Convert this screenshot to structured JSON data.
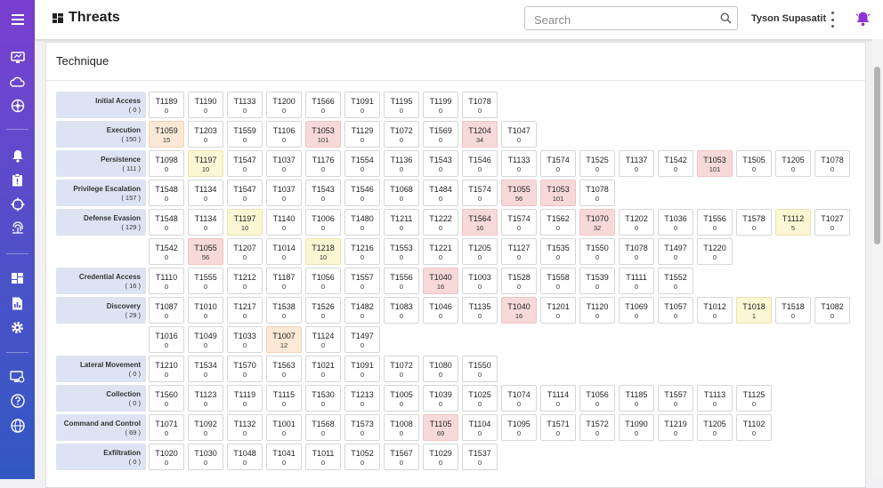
{
  "app": {
    "page_title": "Threats",
    "search_placeholder": "Search",
    "user_name": "Tyson Supasatit"
  },
  "sidebar": {
    "icons": [
      "menu-icon",
      "monitor-icon",
      "cloud-icon",
      "network-icon",
      "bell-icon",
      "clipboard-icon",
      "target-icon",
      "fingerprint-icon",
      "dashboard-icon",
      "report-icon",
      "settings-icon",
      "desktop-settings-icon",
      "help-icon",
      "globe-icon"
    ]
  },
  "colors": {
    "sidebar_top": "#7a3fd0",
    "sidebar_bottom": "#3258c4",
    "tactic_bg": "#dde3f2",
    "heat_pink": "#f7d9d9",
    "heat_orange": "#fbe8d6",
    "heat_yellow": "#fbf6d3",
    "bell_accent": "#8e35d6"
  },
  "card": {
    "title": "Technique"
  },
  "matrix": [
    {
      "tactic": "Initial Access",
      "count": "( 0 )",
      "rows": [
        [
          [
            "T1189",
            "0"
          ],
          [
            "T1190",
            "0"
          ],
          [
            "T1133",
            "0"
          ],
          [
            "T1200",
            "0"
          ],
          [
            "T1566",
            "0"
          ],
          [
            "T1091",
            "0"
          ],
          [
            "T1195",
            "0"
          ],
          [
            "T1199",
            "0"
          ],
          [
            "T1078",
            "0"
          ]
        ]
      ]
    },
    {
      "tactic": "Execution",
      "count": "( 150 )",
      "rows": [
        [
          [
            "T1059",
            "15",
            "orange"
          ],
          [
            "T1203",
            "0"
          ],
          [
            "T1559",
            "0"
          ],
          [
            "T1106",
            "0"
          ],
          [
            "T1053",
            "101",
            "pink"
          ],
          [
            "T1129",
            "0"
          ],
          [
            "T1072",
            "0"
          ],
          [
            "T1569",
            "0"
          ],
          [
            "T1204",
            "34",
            "pink"
          ],
          [
            "T1047",
            "0"
          ]
        ]
      ]
    },
    {
      "tactic": "Persistence",
      "count": "( 111 )",
      "rows": [
        [
          [
            "T1098",
            "0"
          ],
          [
            "T1197",
            "10",
            "yellow"
          ],
          [
            "T1547",
            "0"
          ],
          [
            "T1037",
            "0"
          ],
          [
            "T1176",
            "0"
          ],
          [
            "T1554",
            "0"
          ],
          [
            "T1136",
            "0"
          ],
          [
            "T1543",
            "0"
          ],
          [
            "T1546",
            "0"
          ],
          [
            "T1133",
            "0"
          ],
          [
            "T1574",
            "0"
          ],
          [
            "T1525",
            "0"
          ],
          [
            "T1137",
            "0"
          ],
          [
            "T1542",
            "0"
          ],
          [
            "T1053",
            "101",
            "pink"
          ],
          [
            "T1505",
            "0"
          ],
          [
            "T1205",
            "0"
          ],
          [
            "T1078",
            "0"
          ]
        ]
      ]
    },
    {
      "tactic": "Privilege Escalation",
      "count": "( 157 )",
      "rows": [
        [
          [
            "T1548",
            "0"
          ],
          [
            "T1134",
            "0"
          ],
          [
            "T1547",
            "0"
          ],
          [
            "T1037",
            "0"
          ],
          [
            "T1543",
            "0"
          ],
          [
            "T1546",
            "0"
          ],
          [
            "T1068",
            "0"
          ],
          [
            "T1484",
            "0"
          ],
          [
            "T1574",
            "0"
          ],
          [
            "T1055",
            "56",
            "pink"
          ],
          [
            "T1053",
            "101",
            "pink"
          ],
          [
            "T1078",
            "0"
          ]
        ]
      ]
    },
    {
      "tactic": "Defense Evasion",
      "count": "( 129 )",
      "rows": [
        [
          [
            "T1548",
            "0"
          ],
          [
            "T1134",
            "0"
          ],
          [
            "T1197",
            "10",
            "yellow"
          ],
          [
            "T1140",
            "0"
          ],
          [
            "T1006",
            "0"
          ],
          [
            "T1480",
            "0"
          ],
          [
            "T1211",
            "0"
          ],
          [
            "T1222",
            "0"
          ],
          [
            "T1564",
            "16",
            "pink"
          ],
          [
            "T1574",
            "0"
          ],
          [
            "T1562",
            "0"
          ],
          [
            "T1070",
            "32",
            "pink"
          ],
          [
            "T1202",
            "0"
          ],
          [
            "T1036",
            "0"
          ],
          [
            "T1556",
            "0"
          ],
          [
            "T1578",
            "0"
          ],
          [
            "T1112",
            "5",
            "yellow"
          ],
          [
            "T1027",
            "0"
          ]
        ],
        [
          [
            "T1542",
            "0"
          ],
          [
            "T1055",
            "56",
            "pink"
          ],
          [
            "T1207",
            "0"
          ],
          [
            "T1014",
            "0"
          ],
          [
            "T1218",
            "10",
            "yellow"
          ],
          [
            "T1216",
            "0"
          ],
          [
            "T1553",
            "0"
          ],
          [
            "T1221",
            "0"
          ],
          [
            "T1205",
            "0"
          ],
          [
            "T1127",
            "0"
          ],
          [
            "T1535",
            "0"
          ],
          [
            "T1550",
            "0"
          ],
          [
            "T1078",
            "0"
          ],
          [
            "T1497",
            "0"
          ],
          [
            "T1220",
            "0"
          ]
        ]
      ]
    },
    {
      "tactic": "Credential Access",
      "count": "( 16 )",
      "rows": [
        [
          [
            "T1110",
            "0"
          ],
          [
            "T1555",
            "0"
          ],
          [
            "T1212",
            "0"
          ],
          [
            "T1187",
            "0"
          ],
          [
            "T1056",
            "0"
          ],
          [
            "T1557",
            "0"
          ],
          [
            "T1556",
            "0"
          ],
          [
            "T1040",
            "16",
            "pink"
          ],
          [
            "T1003",
            "0"
          ],
          [
            "T1528",
            "0"
          ],
          [
            "T1558",
            "0"
          ],
          [
            "T1539",
            "0"
          ],
          [
            "T1111",
            "0"
          ],
          [
            "T1552",
            "0"
          ]
        ]
      ]
    },
    {
      "tactic": "Discovery",
      "count": "( 29 )",
      "rows": [
        [
          [
            "T1087",
            "0"
          ],
          [
            "T1010",
            "0"
          ],
          [
            "T1217",
            "0"
          ],
          [
            "T1538",
            "0"
          ],
          [
            "T1526",
            "0"
          ],
          [
            "T1482",
            "0"
          ],
          [
            "T1083",
            "0"
          ],
          [
            "T1046",
            "0"
          ],
          [
            "T1135",
            "0"
          ],
          [
            "T1040",
            "16",
            "pink"
          ],
          [
            "T1201",
            "0"
          ],
          [
            "T1120",
            "0"
          ],
          [
            "T1069",
            "0"
          ],
          [
            "T1057",
            "0"
          ],
          [
            "T1012",
            "0"
          ],
          [
            "T1018",
            "1",
            "yellow"
          ],
          [
            "T1518",
            "0"
          ],
          [
            "T1082",
            "0"
          ]
        ],
        [
          [
            "T1016",
            "0"
          ],
          [
            "T1049",
            "0"
          ],
          [
            "T1033",
            "0"
          ],
          [
            "T1007",
            "12",
            "orange"
          ],
          [
            "T1124",
            "0"
          ],
          [
            "T1497",
            "0"
          ]
        ]
      ]
    },
    {
      "tactic": "Lateral Movement",
      "count": "( 0 )",
      "rows": [
        [
          [
            "T1210",
            "0"
          ],
          [
            "T1534",
            "0"
          ],
          [
            "T1570",
            "0"
          ],
          [
            "T1563",
            "0"
          ],
          [
            "T1021",
            "0"
          ],
          [
            "T1091",
            "0"
          ],
          [
            "T1072",
            "0"
          ],
          [
            "T1080",
            "0"
          ],
          [
            "T1550",
            "0"
          ]
        ]
      ]
    },
    {
      "tactic": "Collection",
      "count": "( 0 )",
      "rows": [
        [
          [
            "T1560",
            "0"
          ],
          [
            "T1123",
            "0"
          ],
          [
            "T1119",
            "0"
          ],
          [
            "T1115",
            "0"
          ],
          [
            "T1530",
            "0"
          ],
          [
            "T1213",
            "0"
          ],
          [
            "T1005",
            "0"
          ],
          [
            "T1039",
            "0"
          ],
          [
            "T1025",
            "0"
          ],
          [
            "T1074",
            "0"
          ],
          [
            "T1114",
            "0"
          ],
          [
            "T1056",
            "0"
          ],
          [
            "T1185",
            "0"
          ],
          [
            "T1557",
            "0"
          ],
          [
            "T1113",
            "0"
          ],
          [
            "T1125",
            "0"
          ]
        ]
      ]
    },
    {
      "tactic": "Command and Control",
      "count": "( 69 )",
      "rows": [
        [
          [
            "T1071",
            "0"
          ],
          [
            "T1092",
            "0"
          ],
          [
            "T1132",
            "0"
          ],
          [
            "T1001",
            "0"
          ],
          [
            "T1568",
            "0"
          ],
          [
            "T1573",
            "0"
          ],
          [
            "T1008",
            "0"
          ],
          [
            "T1105",
            "69",
            "pink"
          ],
          [
            "T1104",
            "0"
          ],
          [
            "T1095",
            "0"
          ],
          [
            "T1571",
            "0"
          ],
          [
            "T1572",
            "0"
          ],
          [
            "T1090",
            "0"
          ],
          [
            "T1219",
            "0"
          ],
          [
            "T1205",
            "0"
          ],
          [
            "T1102",
            "0"
          ]
        ]
      ]
    },
    {
      "tactic": "Exfiltration",
      "count": "( 0 )",
      "rows": [
        [
          [
            "T1020",
            "0"
          ],
          [
            "T1030",
            "0"
          ],
          [
            "T1048",
            "0"
          ],
          [
            "T1041",
            "0"
          ],
          [
            "T1011",
            "0"
          ],
          [
            "T1052",
            "0"
          ],
          [
            "T1567",
            "0"
          ],
          [
            "T1029",
            "0"
          ],
          [
            "T1537",
            "0"
          ]
        ]
      ]
    }
  ]
}
